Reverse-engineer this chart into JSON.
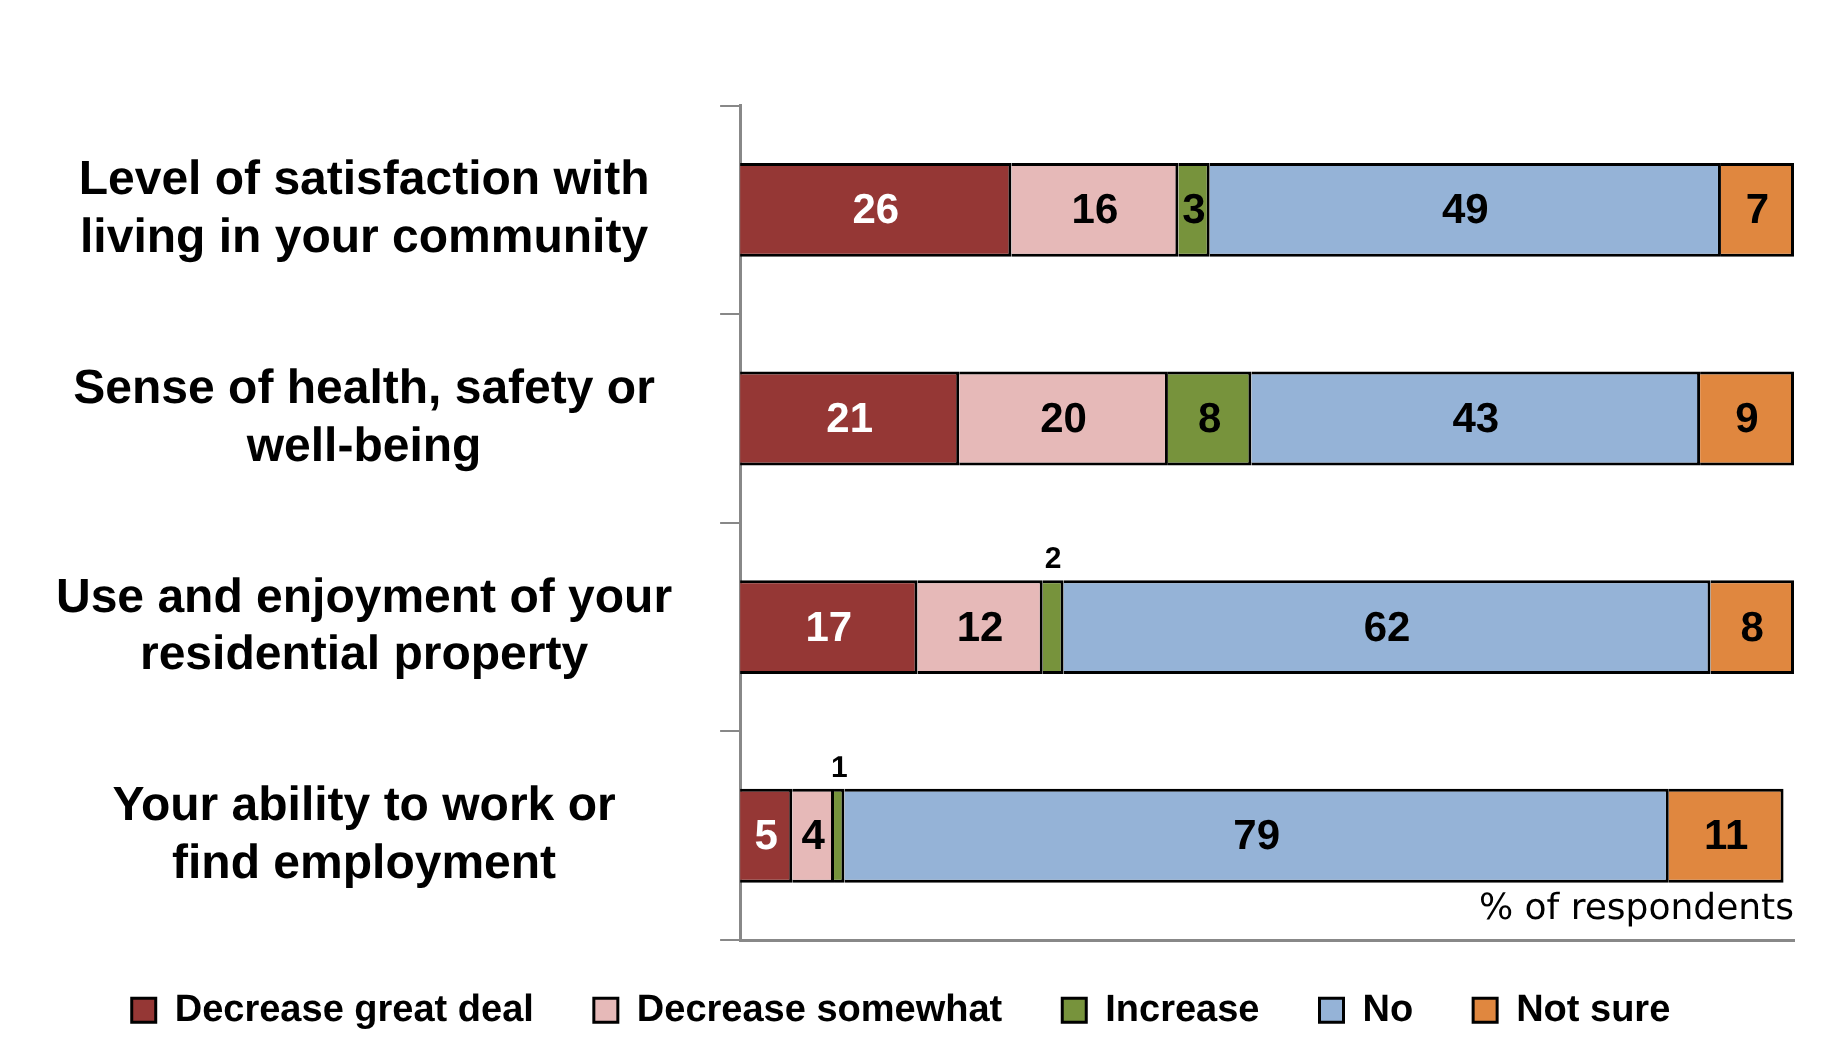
{
  "chart_data": {
    "type": "bar",
    "orientation": "horizontal",
    "stacked": true,
    "xlabel": "% of respondents",
    "categories": [
      "Level of satisfaction with living in your community",
      "Sense of health, safety or well-being",
      "Use and enjoyment of your residential property",
      "Your ability to work or find employment"
    ],
    "series": [
      {
        "name": "Decrease great deal",
        "color": "#953735",
        "values": [
          26,
          21,
          17,
          5
        ]
      },
      {
        "name": "Decrease somewhat",
        "color": "#e6b9b8",
        "values": [
          16,
          20,
          12,
          4
        ]
      },
      {
        "name": "Increase",
        "color": "#77933c",
        "values": [
          3,
          8,
          2,
          1
        ]
      },
      {
        "name": "No",
        "color": "#95b3d7",
        "values": [
          49,
          43,
          62,
          79
        ]
      },
      {
        "name": "Not sure",
        "color": "#e0873f",
        "values": [
          7,
          9,
          8,
          11
        ]
      }
    ],
    "xlim": [
      0,
      101
    ],
    "data_labels": true,
    "legend": "bottom",
    "tick_labels": "y",
    "grid": false
  }
}
